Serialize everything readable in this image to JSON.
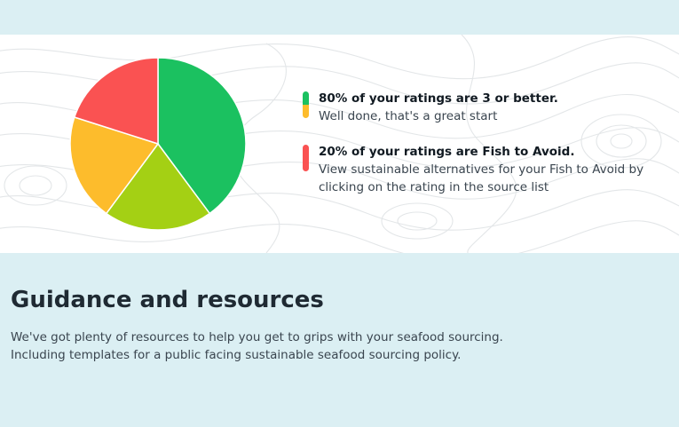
{
  "ratings": {
    "good": {
      "title": "80% of your ratings are 3 or better.",
      "description": "Well done, that's a great start",
      "color_top": "#1bc160",
      "color_bottom": "#fdbc2c"
    },
    "avoid": {
      "title": "20% of your ratings are Fish to Avoid.",
      "description": "View sustainable alternatives for your Fish to Avoid by clicking on the rating in the source list",
      "color": "#fa5252"
    }
  },
  "chart_data": {
    "type": "pie",
    "title": "",
    "slices": [
      {
        "value": 40,
        "color": "#1bc160"
      },
      {
        "value": 20,
        "color": "#a4d014"
      },
      {
        "value": 20,
        "color": "#fdbc2c"
      },
      {
        "value": 20,
        "color": "#fa5252"
      }
    ],
    "legend": "none"
  },
  "guidance": {
    "heading": "Guidance and resources",
    "body": "We've got plenty of resources to help you get to grips with your seafood sourcing. Including templates for a public facing sustainable seafood sourcing policy."
  }
}
